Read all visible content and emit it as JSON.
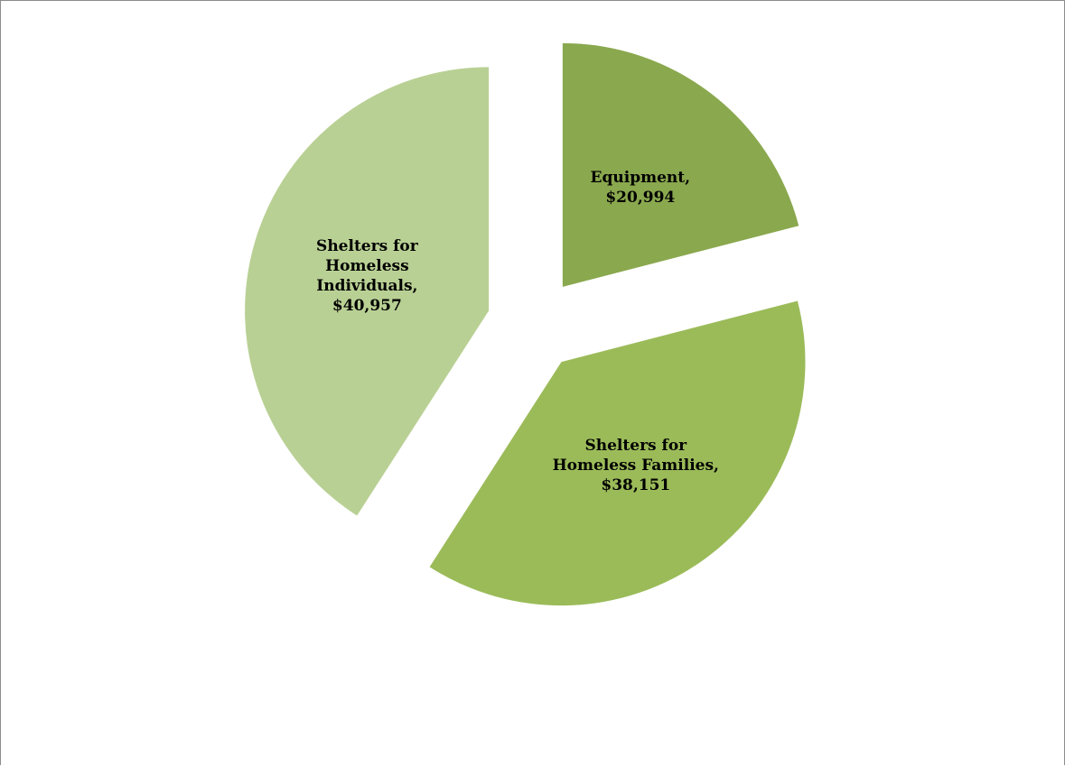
{
  "chart_data": {
    "type": "pie",
    "exploded": true,
    "title": "",
    "legend": "none",
    "slices": [
      {
        "name": "Equipment",
        "value": 20994,
        "label_lines": [
          "Equipment,",
          "$20,994"
        ],
        "color": "#8aa84e"
      },
      {
        "name": "Shelters for Homeless Families",
        "value": 38151,
        "label_lines": [
          "Shelters for",
          "Homeless Families,",
          "$38,151"
        ],
        "color": "#9bbb59"
      },
      {
        "name": "Shelters for Homeless Individuals",
        "value": 40957,
        "label_lines": [
          "Shelters for",
          "Homeless",
          "Individuals,",
          "$40,957"
        ],
        "color": "#b9d094"
      }
    ]
  }
}
